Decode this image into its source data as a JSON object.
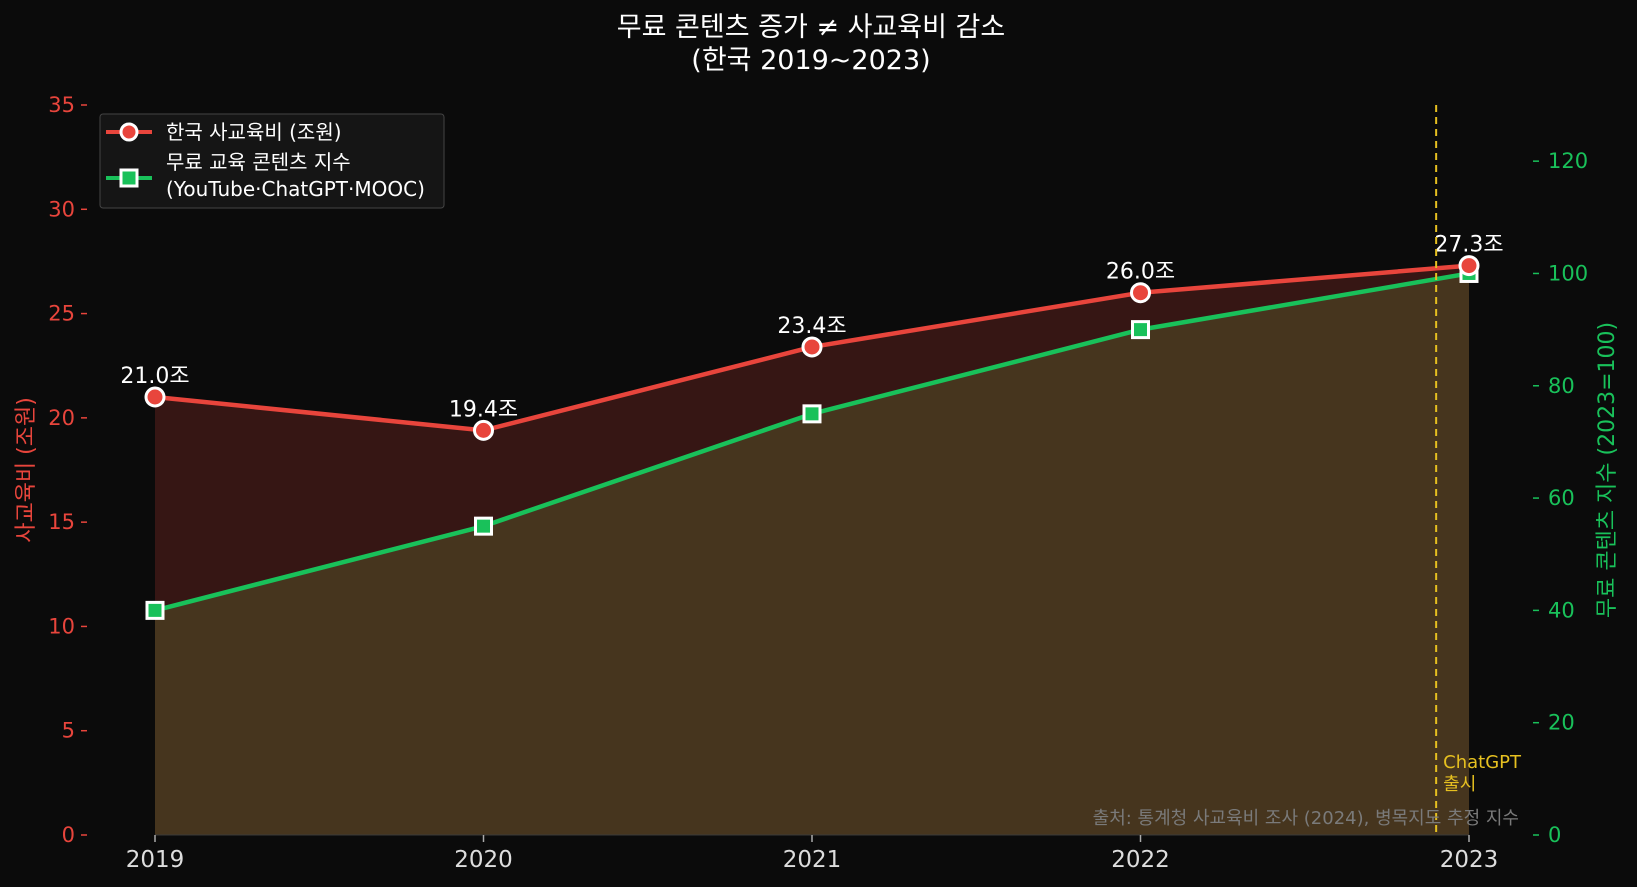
{
  "chart_data": {
    "type": "line",
    "title_line1": "무료 콘텐츠 증가 ≠ 사교육비 감소",
    "title_line2": "(한국 2019~2023)",
    "x": [
      "2019",
      "2020",
      "2021",
      "2022",
      "2023"
    ],
    "series": [
      {
        "name": "한국 사교육비 (조원)",
        "axis": "left",
        "values": [
          21.0,
          19.4,
          23.4,
          26.0,
          27.3
        ],
        "labels": [
          "21.0조",
          "19.4조",
          "23.4조",
          "26.0조",
          "27.3조"
        ],
        "color": "#e8453c",
        "marker": "circle"
      },
      {
        "name_line1": "무료 교육 콘텐츠 지수",
        "name_line2": "(YouTube·ChatGPT·MOOC)",
        "axis": "right",
        "values": [
          40,
          55,
          75,
          90,
          100
        ],
        "color": "#19c15a",
        "marker": "square"
      }
    ],
    "ylabel_left": "사교육비 (조원)",
    "ylabel_right": "무료 콘텐츠 지수 (2023=100)",
    "ylim_left": [
      0,
      35
    ],
    "yticks_left": [
      "0",
      "5",
      "10",
      "15",
      "20",
      "25",
      "30",
      "35"
    ],
    "ylim_right": [
      0,
      130
    ],
    "yticks_right": [
      "0",
      "20",
      "40",
      "60",
      "80",
      "100",
      "120"
    ],
    "annotation": {
      "x": 2022.9,
      "text_line1": "ChatGPT",
      "text_line2": "출시",
      "color": "#e6c020"
    },
    "source": "출처: 통계청 사교육비 조사 (2024), 병목지도 추정 지수",
    "legend": "upper-left",
    "grid": false
  }
}
